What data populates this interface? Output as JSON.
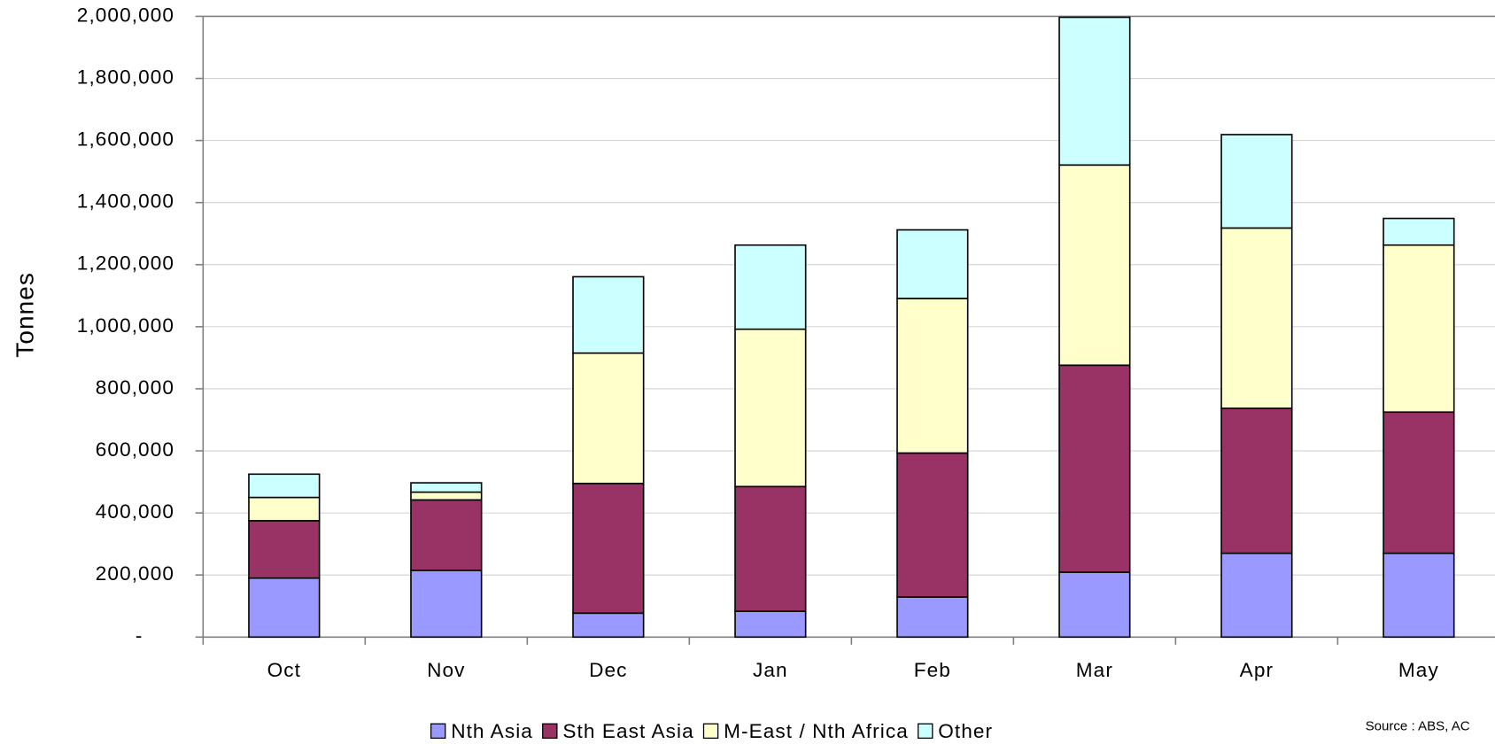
{
  "chart_data": {
    "type": "bar",
    "stacked": true,
    "ylabel": "Tonnes",
    "categories": [
      "Oct",
      "Nov",
      "Dec",
      "Jan",
      "Feb",
      "Mar",
      "Apr",
      "May"
    ],
    "series": [
      {
        "name": "Nth Asia",
        "color": "#9999ff",
        "values": [
          190000,
          215000,
          77000,
          83000,
          129000,
          209000,
          270000,
          270000
        ]
      },
      {
        "name": "Sth East Asia",
        "color": "#993366",
        "values": [
          185000,
          227000,
          418000,
          402000,
          464000,
          667000,
          467000,
          455000
        ]
      },
      {
        "name": "M-East / Nth Africa",
        "color": "#ffffcc",
        "values": [
          75000,
          25000,
          420000,
          507000,
          498000,
          645000,
          581000,
          538000
        ]
      },
      {
        "name": "Other",
        "color": "#ccffff",
        "values": [
          75000,
          30000,
          246000,
          271000,
          221000,
          476000,
          301000,
          86000
        ]
      }
    ],
    "ylim": [
      0,
      2000000
    ],
    "yticks": [
      {
        "value": 0,
        "label": "-"
      },
      {
        "value": 200000,
        "label": "200,000"
      },
      {
        "value": 400000,
        "label": "400,000"
      },
      {
        "value": 600000,
        "label": "600,000"
      },
      {
        "value": 800000,
        "label": "800,000"
      },
      {
        "value": 1000000,
        "label": "1,000,000"
      },
      {
        "value": 1200000,
        "label": "1,200,000"
      },
      {
        "value": 1400000,
        "label": "1,400,000"
      },
      {
        "value": 1600000,
        "label": "1,600,000"
      },
      {
        "value": 1800000,
        "label": "1,800,000"
      },
      {
        "value": 2000000,
        "label": "2,000,000"
      }
    ],
    "grid": true,
    "legend": "bottom",
    "source": "Source : ABS, AC"
  }
}
